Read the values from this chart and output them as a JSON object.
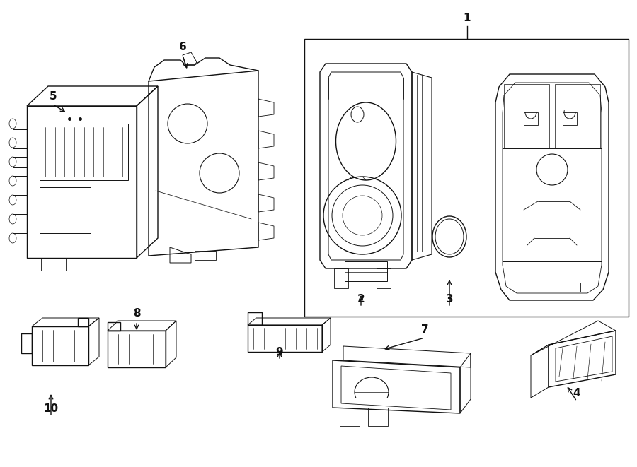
{
  "background": "#ffffff",
  "lc": "#111111",
  "lw": 1.0,
  "figsize": [
    9.0,
    6.61
  ],
  "dpi": 100
}
